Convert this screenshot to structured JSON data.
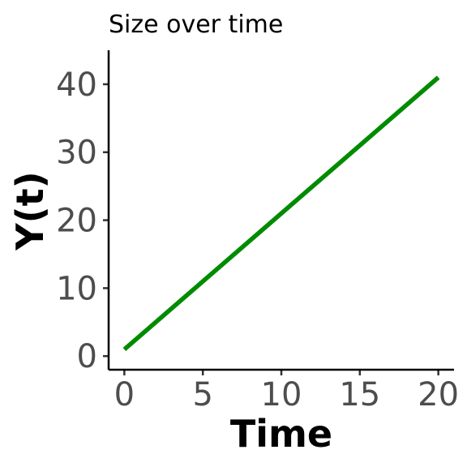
{
  "chart_data": {
    "type": "line",
    "title": "Size over time",
    "xlabel": "Time",
    "ylabel": "Y(t)",
    "xlim": [
      -1,
      21
    ],
    "ylim": [
      -2,
      45
    ],
    "x_ticks": [
      0,
      5,
      10,
      15,
      20
    ],
    "y_ticks": [
      0,
      10,
      20,
      30,
      40
    ],
    "grid": false,
    "series": [
      {
        "color": "#008b00",
        "x": [
          0,
          20
        ],
        "y": [
          1,
          41
        ]
      }
    ]
  }
}
